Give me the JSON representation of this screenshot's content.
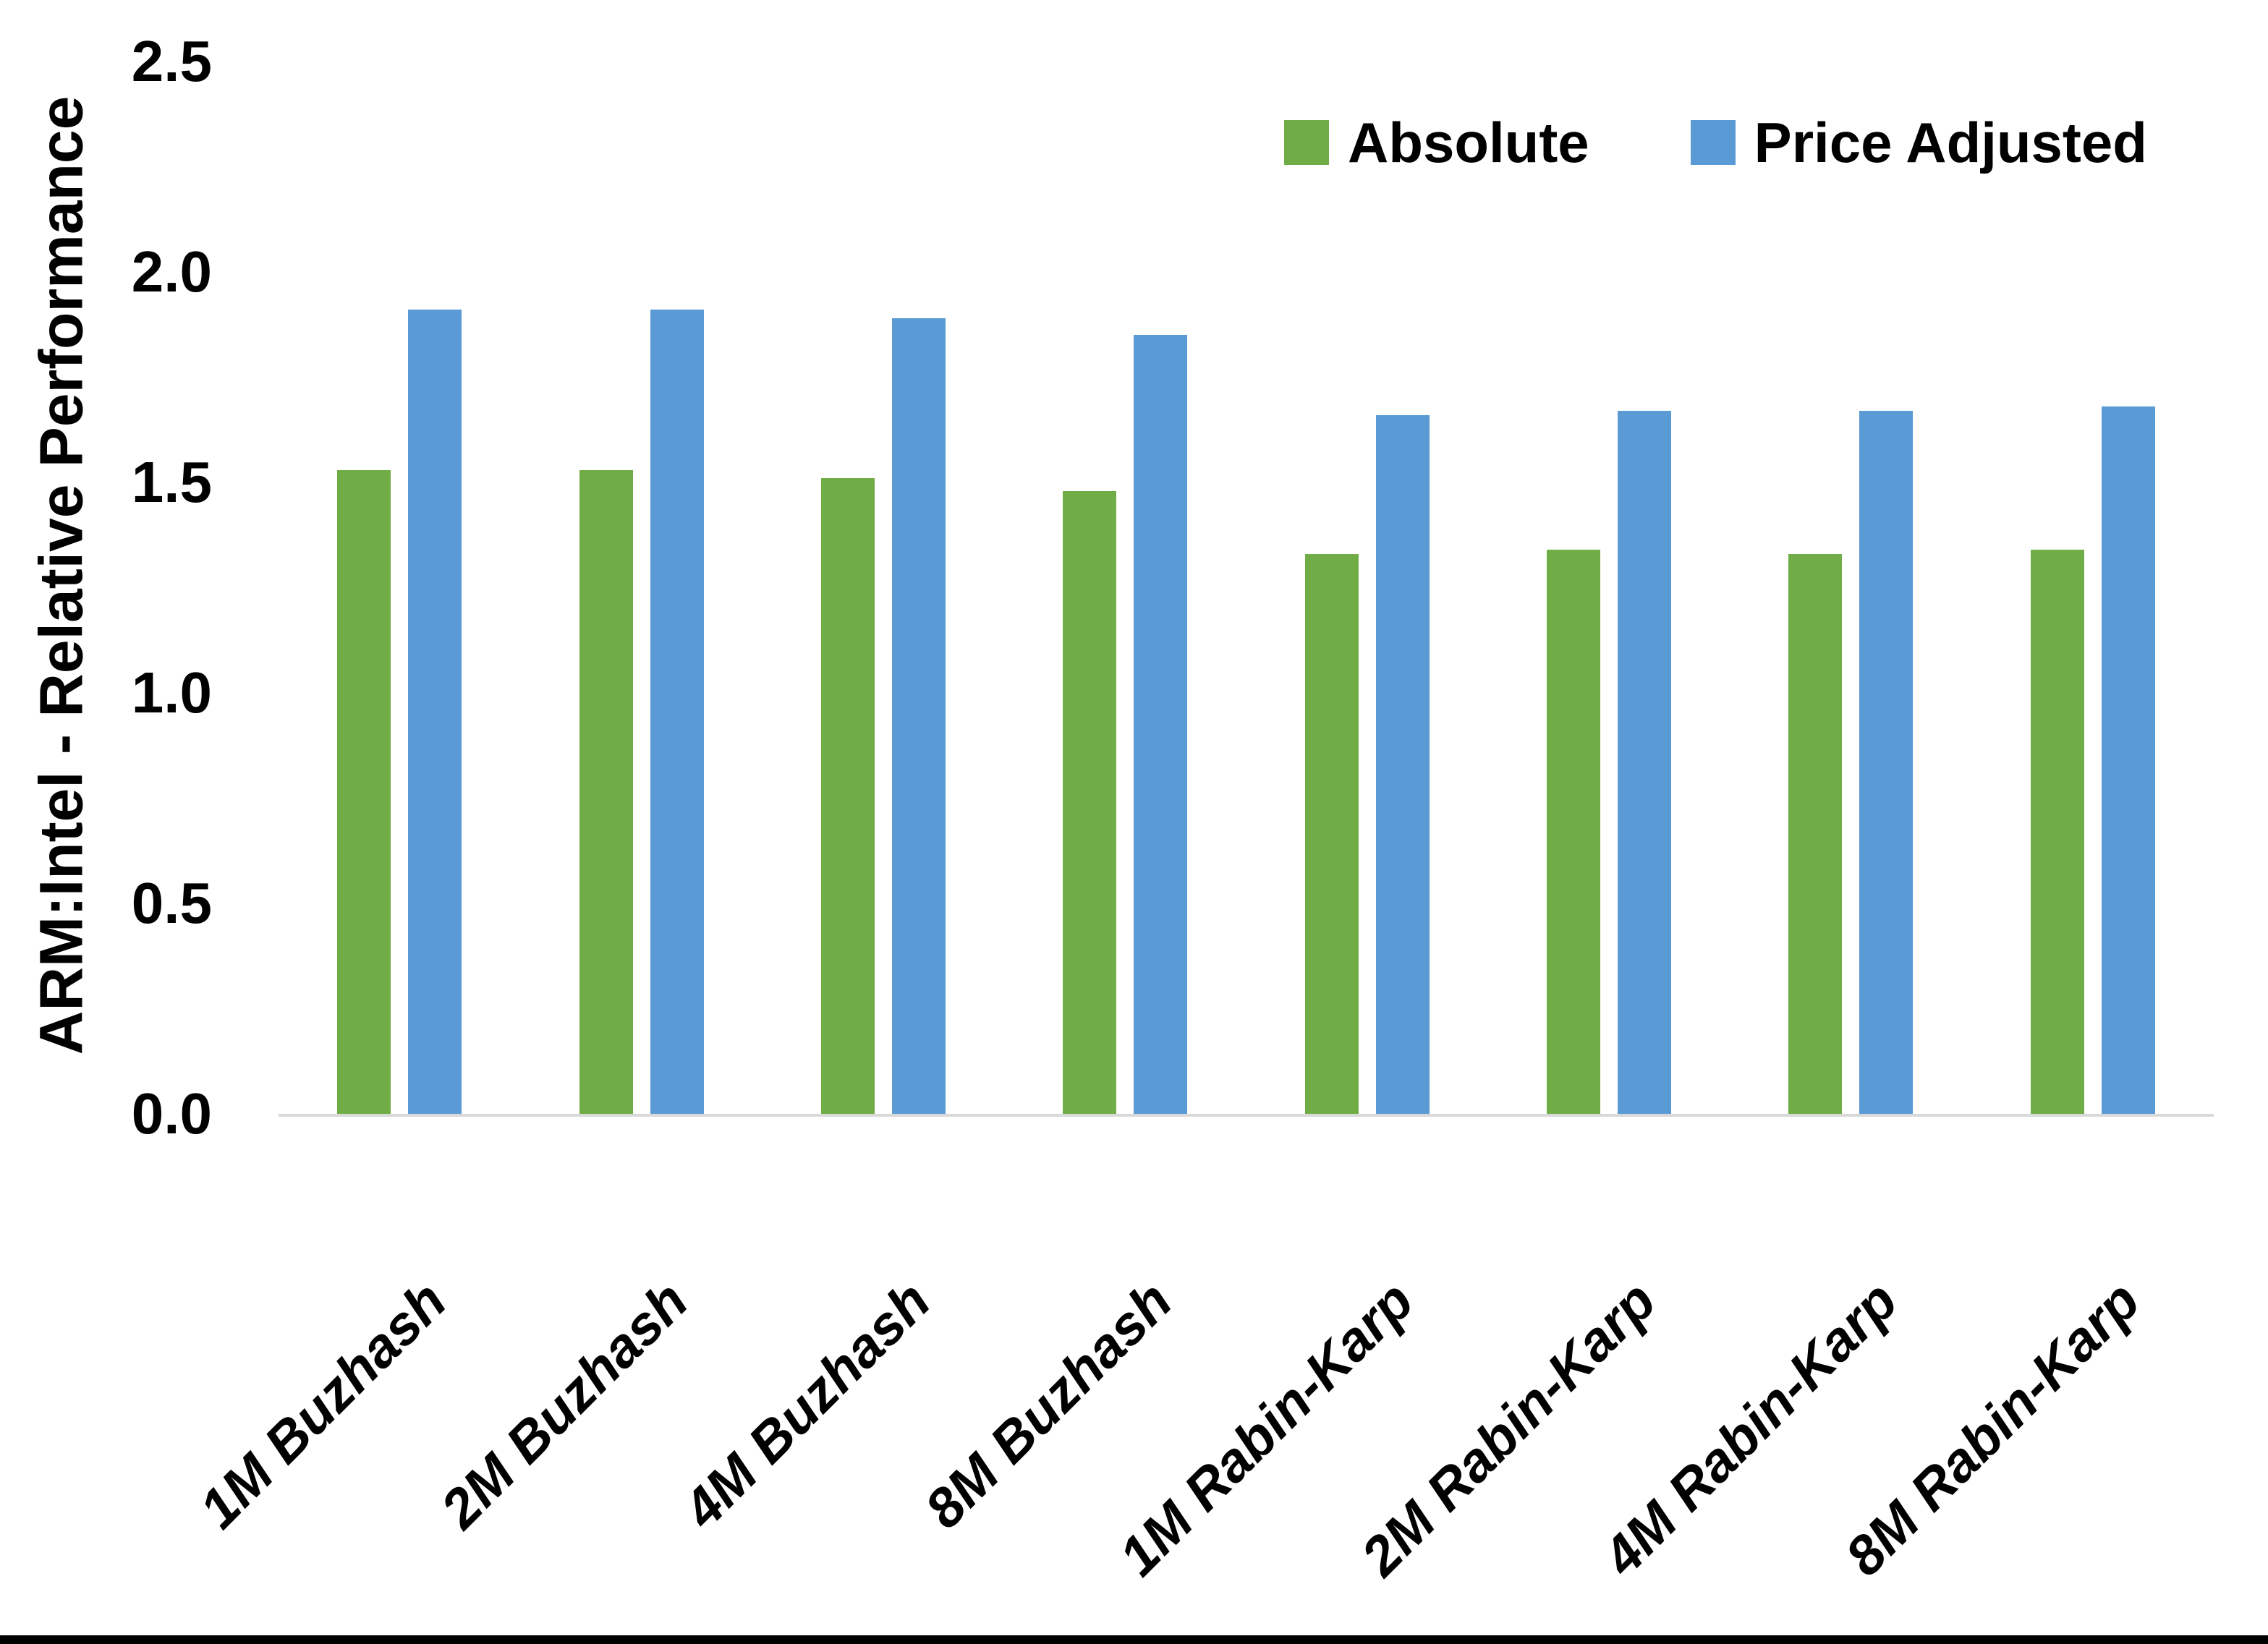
{
  "chart_data": {
    "type": "bar",
    "title": "",
    "ylabel": "ARM:Intel - Relative Performance",
    "xlabel": "",
    "categories": [
      "1M Buzhash",
      "2M Buzhash",
      "4M Buzhash",
      "8M Buzhash",
      "1M Rabin-Karp",
      "2M Rabin-Karp",
      "4M Rabin-Karp",
      "8M Rabin-Karp"
    ],
    "series": [
      {
        "name": "Absolute",
        "color": "#70AD47",
        "values": [
          1.53,
          1.53,
          1.51,
          1.48,
          1.33,
          1.34,
          1.33,
          1.34
        ]
      },
      {
        "name": "Price Adjusted",
        "color": "#5B9BD5",
        "values": [
          1.91,
          1.91,
          1.89,
          1.85,
          1.66,
          1.67,
          1.67,
          1.68
        ]
      }
    ],
    "ylim": [
      0,
      2.5
    ],
    "ytick_labels": [
      "0.0",
      "0.5",
      "1.0",
      "1.5",
      "2.0",
      "2.5"
    ],
    "grid": false,
    "legend_position": "top-right",
    "axis_line_color": "#D9D9D9",
    "text_color": "#000000",
    "frame_bottom_color": "#000000",
    "background_color": "#FFFFFF"
  }
}
